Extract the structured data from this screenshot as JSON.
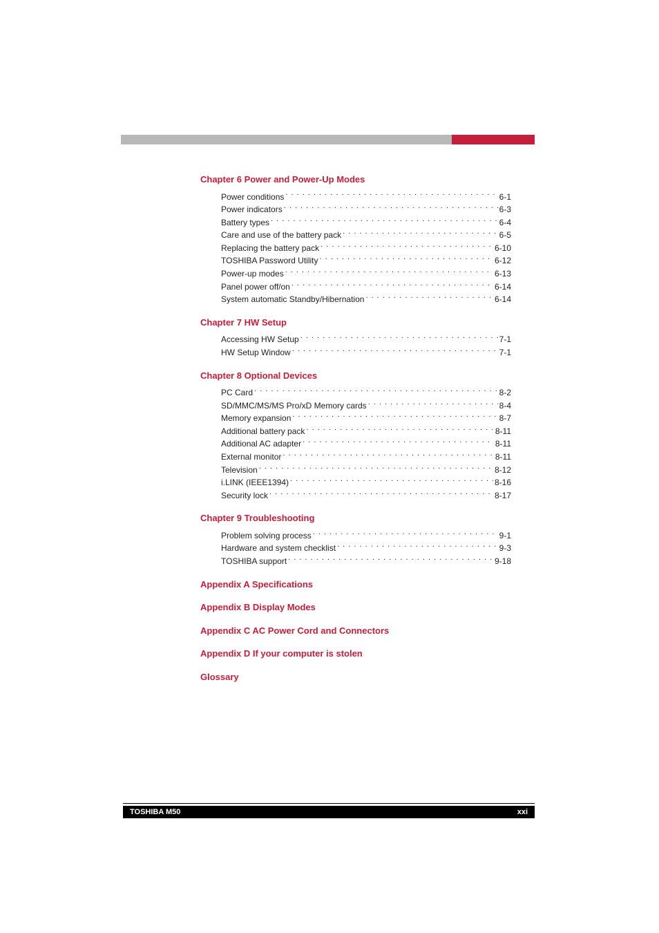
{
  "colors": {
    "header_gray": "#b8b8b8",
    "header_red": "#c41e3a",
    "title_red": "#c41e3a",
    "body_text": "#222222",
    "footer_bg": "#000000",
    "footer_text": "#ffffff",
    "page_bg": "#ffffff"
  },
  "typography": {
    "title_fontsize": 13,
    "title_weight": "bold",
    "entry_fontsize": 12,
    "footer_fontsize": 11
  },
  "sections": [
    {
      "title": "Chapter 6  Power and Power-Up Modes",
      "entries": [
        {
          "label": "Power conditions",
          "page": "6-1"
        },
        {
          "label": "Power indicators",
          "page": "6-3"
        },
        {
          "label": "Battery types",
          "page": "6-4"
        },
        {
          "label": "Care and use of the battery pack",
          "page": "6-5"
        },
        {
          "label": "Replacing the battery pack",
          "page": "6-10"
        },
        {
          "label": "TOSHIBA Password Utility",
          "page": "6-12"
        },
        {
          "label": "Power-up modes",
          "page": "6-13"
        },
        {
          "label": "Panel power off/on",
          "page": "6-14"
        },
        {
          "label": "System automatic Standby/Hibernation",
          "page": "6-14"
        }
      ]
    },
    {
      "title": "Chapter 7  HW Setup",
      "entries": [
        {
          "label": "Accessing HW Setup",
          "page": "7-1"
        },
        {
          "label": "HW Setup Window",
          "page": "7-1"
        }
      ]
    },
    {
      "title": "Chapter 8  Optional Devices",
      "entries": [
        {
          "label": "PC Card",
          "page": "8-2"
        },
        {
          "label": "SD/MMC/MS/MS Pro/xD Memory cards",
          "page": "8-4"
        },
        {
          "label": "Memory expansion",
          "page": "8-7"
        },
        {
          "label": "Additional battery pack",
          "page": "8-11"
        },
        {
          "label": "Additional AC adapter",
          "page": "8-11"
        },
        {
          "label": "External monitor",
          "page": "8-11"
        },
        {
          "label": "Television",
          "page": "8-12"
        },
        {
          "label": "i.LINK (IEEE1394)",
          "page": "8-16"
        },
        {
          "label": "Security lock",
          "page": "8-17"
        }
      ]
    },
    {
      "title": "Chapter 9  Troubleshooting",
      "entries": [
        {
          "label": "Problem solving process",
          "page": "9-1"
        },
        {
          "label": "Hardware and system checklist",
          "page": "9-3"
        },
        {
          "label": "TOSHIBA support",
          "page": "9-18"
        }
      ]
    },
    {
      "title": "Appendix A  Specifications",
      "entries": []
    },
    {
      "title": "Appendix B  Display Modes",
      "entries": []
    },
    {
      "title": "Appendix C  AC Power Cord and Connectors",
      "entries": []
    },
    {
      "title": "Appendix D  If your computer is stolen",
      "entries": []
    },
    {
      "title": "Glossary",
      "entries": []
    }
  ],
  "footer": {
    "left": "TOSHIBA M50",
    "right": "xxi"
  }
}
